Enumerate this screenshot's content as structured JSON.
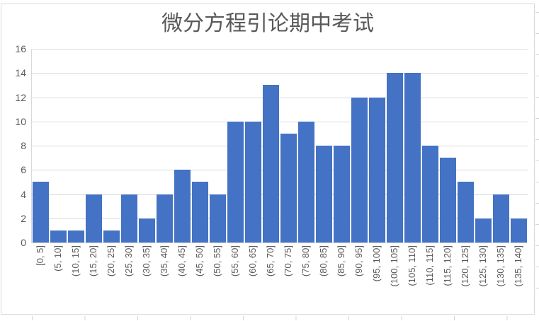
{
  "chart_data": {
    "type": "bar",
    "title": "微分方程引论期中考试",
    "categories": [
      "[0, 5]",
      "(5, 10]",
      "(10, 15]",
      "(15, 20]",
      "(20, 25]",
      "(25, 30]",
      "(30, 35]",
      "(35, 40]",
      "(40, 45]",
      "(45, 50]",
      "(50, 55]",
      "(55, 60]",
      "(60, 65]",
      "(65, 70]",
      "(70, 75]",
      "(75, 80]",
      "(80, 85]",
      "(85, 90]",
      "(90, 95]",
      "(95, 100]",
      "(100, 105]",
      "(105, 110]",
      "(110, 115]",
      "(115, 120]",
      "(120, 125]",
      "(125, 130]",
      "(130, 135]",
      "(135, 140]"
    ],
    "values": [
      5,
      1,
      1,
      4,
      1,
      4,
      2,
      4,
      6,
      5,
      4,
      10,
      10,
      13,
      9,
      10,
      8,
      8,
      12,
      12,
      14,
      14,
      8,
      7,
      5,
      2,
      4,
      2
    ],
    "xlabel": "",
    "ylabel": "",
    "ylim": [
      0,
      16
    ],
    "yticks": [
      0,
      2,
      4,
      6,
      8,
      10,
      12,
      14,
      16
    ],
    "grid": true,
    "legend_position": "none",
    "bar_color": "#4472C4",
    "gridline_color": "#D9D9D9",
    "axis_line_color": "#D9D9D9",
    "text_color": "#595959",
    "chart_border_color": "#D9D9D9",
    "worksheet_gridline_color": "#D6D6D6"
  }
}
